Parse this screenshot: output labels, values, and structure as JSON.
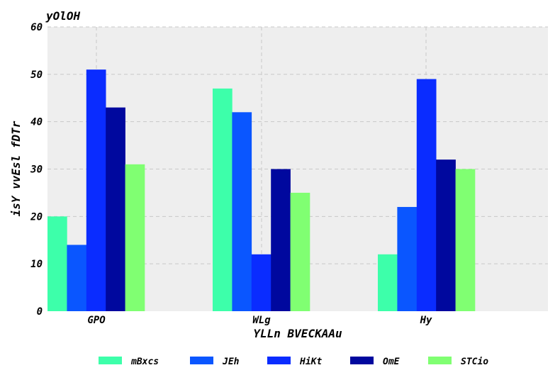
{
  "chart_data": {
    "type": "bar",
    "title": "yOlOH",
    "xlabel": "YLLn BVECKAAu",
    "ylabel": "isY vvEsl fDTr",
    "categories": [
      "GPO",
      "WLg",
      "Hy"
    ],
    "ylim": [
      0,
      60
    ],
    "yticks": [
      0,
      10,
      20,
      30,
      40,
      50,
      60
    ],
    "grid": true,
    "legend_position": "bottom",
    "background": "#eeeeee",
    "series": [
      {
        "name": "mBxcs",
        "color": "#3dffaa",
        "values": [
          20,
          47,
          12
        ]
      },
      {
        "name": "JEh",
        "color": "#0a56ff",
        "values": [
          14,
          42,
          22
        ]
      },
      {
        "name": "HiKt",
        "color": "#0a2cff",
        "values": [
          51,
          12,
          49
        ]
      },
      {
        "name": "OmE",
        "color": "#00089e",
        "values": [
          43,
          30,
          32
        ]
      },
      {
        "name": "STCio",
        "color": "#80ff72",
        "values": [
          31,
          25,
          30
        ]
      }
    ]
  }
}
